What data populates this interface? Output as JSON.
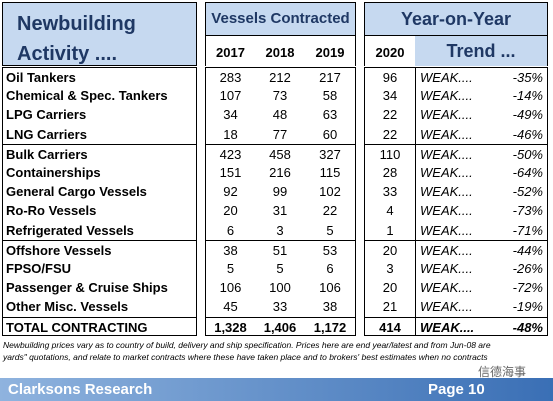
{
  "header": {
    "title_line1": "Newbuilding",
    "title_line2": "Activity ....",
    "group1": "Vessels Contracted",
    "group2_line1": "Year-on-Year",
    "group2_line2": "Trend ...",
    "years": [
      "2017",
      "2018",
      "2019",
      "2020"
    ]
  },
  "table": {
    "rows": [
      [
        "Oil Tankers",
        "283",
        "212",
        "217",
        "96",
        "WEAK....",
        "-35%"
      ],
      [
        "Chemical & Spec. Tankers",
        "107",
        "73",
        "58",
        "34",
        "WEAK....",
        "-14%"
      ],
      [
        "LPG Carriers",
        "34",
        "48",
        "63",
        "22",
        "WEAK....",
        "-49%"
      ],
      [
        "LNG Carriers",
        "18",
        "77",
        "60",
        "22",
        "WEAK....",
        "-46%"
      ],
      [
        "Bulk Carriers",
        "423",
        "458",
        "327",
        "110",
        "WEAK....",
        "-50%"
      ],
      [
        "Containerships",
        "151",
        "216",
        "115",
        "28",
        "WEAK....",
        "-64%"
      ],
      [
        "General Cargo Vessels",
        "92",
        "99",
        "102",
        "33",
        "WEAK....",
        "-52%"
      ],
      [
        "Ro-Ro Vessels",
        "20",
        "31",
        "22",
        "4",
        "WEAK....",
        "-73%"
      ],
      [
        "Refrigerated Vessels",
        "6",
        "3",
        "5",
        "1",
        "WEAK....",
        "-71%"
      ],
      [
        "Offshore Vessels",
        "38",
        "51",
        "53",
        "20",
        "WEAK....",
        "-44%"
      ],
      [
        "FPSO/FSU",
        "5",
        "5",
        "6",
        "3",
        "WEAK....",
        "-26%"
      ],
      [
        "Passenger & Cruise Ships",
        "106",
        "100",
        "106",
        "20",
        "WEAK....",
        "-72%"
      ],
      [
        "Other Misc. Vessels",
        "45",
        "33",
        "38",
        "21",
        "WEAK....",
        "-19%"
      ],
      [
        "TOTAL CONTRACTING",
        "1,328",
        "1,406",
        "1,172",
        "414",
        "WEAK....",
        "-48%"
      ]
    ]
  },
  "footnote": {
    "line1": "Newbuilding prices vary as to country of build, delivery and ship specification.  Prices here are end year/latest and from Jun-08 are",
    "line2": "yards\" quotations, and relate to market contracts where these have taken place and to brokers' best estimates when no contracts"
  },
  "footer": {
    "left": "Clarksons Research",
    "right": "Page 10",
    "watermark": "信德海事"
  }
}
